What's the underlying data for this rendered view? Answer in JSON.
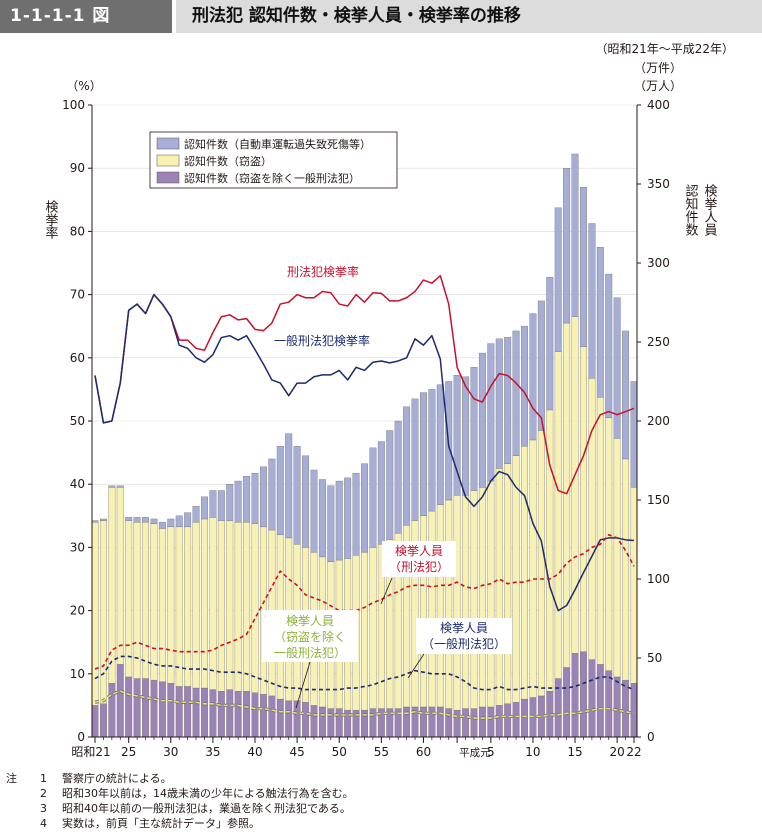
{
  "header": {
    "figure_label": "1-1-1-1 図",
    "title": "刑法犯 認知件数・検挙人員・検挙率の推移"
  },
  "period": "（昭和21年～平成22年）",
  "chart_data": {
    "type": "bar",
    "years": [
      1946,
      1947,
      1948,
      1949,
      1950,
      1951,
      1952,
      1953,
      1954,
      1955,
      1956,
      1957,
      1958,
      1959,
      1960,
      1961,
      1962,
      1963,
      1964,
      1965,
      1966,
      1967,
      1968,
      1969,
      1970,
      1971,
      1972,
      1973,
      1974,
      1975,
      1976,
      1977,
      1978,
      1979,
      1980,
      1981,
      1982,
      1983,
      1984,
      1985,
      1986,
      1987,
      1988,
      1989,
      1990,
      1991,
      1992,
      1993,
      1994,
      1995,
      1996,
      1997,
      1998,
      1999,
      2000,
      2001,
      2002,
      2003,
      2004,
      2005,
      2006,
      2007,
      2008,
      2009,
      2010
    ],
    "x_tick_labels": [
      {
        "year": 1946,
        "label": "昭和21"
      },
      {
        "year": 1950,
        "label": "25"
      },
      {
        "year": 1955,
        "label": "30"
      },
      {
        "year": 1960,
        "label": "35"
      },
      {
        "year": 1965,
        "label": "40"
      },
      {
        "year": 1970,
        "label": "45"
      },
      {
        "year": 1975,
        "label": "50"
      },
      {
        "year": 1980,
        "label": "55"
      },
      {
        "year": 1985,
        "label": "60"
      },
      {
        "year": 1989,
        "label": "平成元"
      },
      {
        "year": 1993,
        "label": "5"
      },
      {
        "year": 1998,
        "label": "10"
      },
      {
        "year": 2003,
        "label": "15"
      },
      {
        "year": 2008,
        "label": "20"
      },
      {
        "year": 2010,
        "label": "22"
      }
    ],
    "left_axis": {
      "label": "検挙率",
      "unit": "（%）",
      "min": 0,
      "max": 100,
      "ticks": [
        0,
        10,
        20,
        30,
        40,
        50,
        60,
        70,
        80,
        90,
        100
      ]
    },
    "right_axis": {
      "label": "認知件数",
      "label2": "検挙人員",
      "unit1": "（万件）",
      "unit2": "（万人）",
      "min": 0,
      "max": 400,
      "ticks": [
        0,
        50,
        100,
        150,
        200,
        250,
        300,
        350,
        400
      ]
    },
    "bar_series": [
      {
        "name": "認知件数（窃盗を除く一般刑法犯）",
        "color": "#9b84b5",
        "values": [
          20,
          21,
          34,
          46,
          38,
          37,
          37,
          36,
          35,
          34,
          32,
          32,
          31,
          31,
          30,
          29,
          30,
          29,
          29,
          28,
          27,
          26,
          24,
          23,
          23,
          22,
          20,
          19,
          18,
          18,
          17,
          17,
          17,
          18,
          18,
          18,
          18,
          19,
          19,
          19,
          19,
          19,
          18,
          17,
          18,
          18,
          19,
          19,
          20,
          21,
          22,
          24,
          25,
          26,
          29,
          37,
          44,
          53,
          54,
          49,
          46,
          42,
          38,
          36,
          34
        ]
      },
      {
        "name": "認知件数（窃盗）",
        "color": "#f9f1b0",
        "values": [
          116,
          116,
          124,
          112,
          99,
          99,
          99,
          99,
          97,
          99,
          101,
          101,
          105,
          107,
          109,
          108,
          107,
          107,
          107,
          107,
          106,
          105,
          104,
          103,
          99,
          98,
          97,
          95,
          93,
          94,
          96,
          98,
          100,
          102,
          104,
          107,
          111,
          115,
          118,
          121,
          124,
          128,
          132,
          136,
          135,
          138,
          139,
          143,
          150,
          152,
          156,
          160,
          163,
          168,
          178,
          207,
          218,
          213,
          193,
          178,
          169,
          160,
          151,
          140,
          124
        ]
      },
      {
        "name": "認知件数（自動車運転過失致死傷等）",
        "color": "#a7aed6",
        "values": [
          1,
          1,
          1,
          1,
          2,
          3,
          3,
          3,
          4,
          5,
          7,
          9,
          10,
          14,
          17,
          19,
          23,
          26,
          29,
          32,
          38,
          45,
          56,
          66,
          62,
          58,
          52,
          49,
          48,
          50,
          51,
          52,
          56,
          63,
          65,
          69,
          71,
          75,
          77,
          78,
          77,
          76,
          75,
          76,
          75,
          78,
          85,
          87,
          82,
          80,
          79,
          76,
          80,
          82,
          84,
          91,
          98,
          103,
          101,
          98,
          95,
          91,
          89,
          81,
          67
        ]
      }
    ],
    "line_series": [
      {
        "name": "刑法犯検挙率",
        "color": "#c8102e",
        "style": "solid",
        "axis": "left",
        "values": [
          57.2,
          49.7,
          50,
          56,
          67.5,
          68.5,
          67,
          70,
          68.5,
          66.5,
          62.8,
          62.8,
          61.5,
          61.2,
          64,
          66.5,
          66.8,
          66,
          66.2,
          64.5,
          64.3,
          65.5,
          68.5,
          68.8,
          70,
          69.5,
          69.5,
          70.5,
          70.3,
          68.5,
          68.2,
          70,
          68.8,
          70.3,
          70.2,
          69,
          69,
          69.5,
          70.5,
          72.3,
          71.8,
          73,
          68.5,
          58.5,
          55.5,
          53.5,
          53,
          55.5,
          57.5,
          57.2,
          56,
          54.5,
          52,
          50.5,
          43,
          39,
          38.5,
          41.5,
          44.5,
          48.5,
          51,
          51.5,
          51,
          51.5,
          52
        ]
      },
      {
        "name": "一般刑法犯検挙率",
        "color": "#1c2a6e",
        "style": "solid",
        "axis": "left",
        "values": [
          57.2,
          49.7,
          50,
          56,
          67.5,
          68.5,
          67,
          70,
          68.5,
          66.5,
          62,
          61.5,
          60,
          59.3,
          60.5,
          63.2,
          63.5,
          62.8,
          63.5,
          61.3,
          59,
          56.5,
          56,
          54,
          56,
          56,
          57,
          57.3,
          57.3,
          58,
          56.5,
          58.5,
          58,
          59.3,
          59.5,
          59.2,
          59.5,
          60,
          63,
          62,
          63.5,
          59.8,
          46,
          42,
          38,
          36.5,
          38,
          40.5,
          42,
          41.5,
          39.5,
          38.2,
          33.8,
          31,
          23.8,
          20,
          20.8,
          23.3,
          26,
          28.6,
          31.2,
          31.5,
          31.5,
          31.2,
          31.1
        ]
      },
      {
        "name": "検挙人員（刑法犯）",
        "color": "#c8102e",
        "style": "dashed",
        "axis": "right",
        "values": [
          43,
          45,
          55,
          58,
          58,
          60,
          58,
          56,
          56,
          55,
          54,
          54,
          54,
          54,
          55,
          58,
          60,
          62,
          65,
          75,
          85,
          95,
          105,
          100,
          96,
          90,
          88,
          86,
          83,
          80,
          80,
          80,
          82,
          85,
          87,
          90,
          92,
          95,
          96,
          96,
          95,
          96,
          96,
          98,
          95,
          94,
          96,
          97,
          100,
          97,
          98,
          98,
          100,
          100,
          100,
          103,
          110,
          114,
          116,
          120,
          122,
          128,
          126,
          118,
          108
        ]
      },
      {
        "name": "検挙人員（一般刑法犯）",
        "color": "#1c2a6e",
        "style": "dashed",
        "axis": "right",
        "values": [
          37,
          40,
          48,
          51,
          51,
          50,
          48,
          46,
          45,
          45,
          44,
          43,
          43,
          43,
          42,
          41,
          41,
          41,
          40,
          38,
          36,
          34,
          32,
          31,
          31,
          30,
          30,
          30,
          30,
          30,
          31,
          31,
          32,
          33,
          35,
          37,
          38,
          40,
          42,
          41,
          40,
          40,
          40,
          38,
          35,
          31,
          30,
          30,
          32,
          30,
          30,
          31,
          32,
          31,
          31,
          31,
          31,
          32,
          34,
          36,
          38,
          38,
          35,
          32,
          30
        ]
      },
      {
        "name": "検挙人員（窃盗を除く一般刑法犯）",
        "color": "#e8e26a",
        "style": "dashed",
        "axis": "right",
        "values": [
          22,
          23,
          27,
          29,
          27,
          26,
          25,
          24,
          23,
          23,
          22,
          22,
          22,
          21,
          21,
          20,
          20,
          20,
          19,
          18,
          18,
          17,
          16,
          16,
          15,
          15,
          14,
          14,
          14,
          14,
          14,
          14,
          14,
          14,
          15,
          15,
          15,
          15,
          16,
          15,
          15,
          15,
          14,
          13,
          13,
          12,
          12,
          12,
          13,
          13,
          13,
          13,
          13,
          13,
          14,
          14,
          15,
          15,
          16,
          17,
          18,
          18,
          17,
          16,
          15
        ]
      }
    ],
    "legend": {
      "position": "top-left",
      "items": [
        "認知件数（自動車運転過失致死傷等）",
        "認知件数（窃盗）",
        "認知件数（窃盗を除く一般刑法犯）"
      ]
    },
    "annotations": {
      "keiho_rate": "刑法犯検挙率",
      "ippan_rate": "一般刑法犯検挙率",
      "keiho_persons_line1": "検挙人員",
      "keiho_persons_line2": "（刑法犯）",
      "ippan_persons_line1": "検挙人員",
      "ippan_persons_line2": "（一般刑法犯）",
      "exclude_persons_line1": "検挙人員",
      "exclude_persons_line2": "（窃盗を除く",
      "exclude_persons_line3": "一般刑法犯）"
    }
  },
  "notes": {
    "head": "注",
    "items": [
      {
        "num": "1",
        "text": "警察庁の統計による。"
      },
      {
        "num": "2",
        "text": "昭和30年以前は，14歳未満の少年による触法行為を含む。"
      },
      {
        "num": "3",
        "text": "昭和40年以前の一般刑法犯は，業過を除く刑法犯である。"
      },
      {
        "num": "4",
        "text": "実数は，前頁「主な統計データ」参照。"
      }
    ]
  }
}
